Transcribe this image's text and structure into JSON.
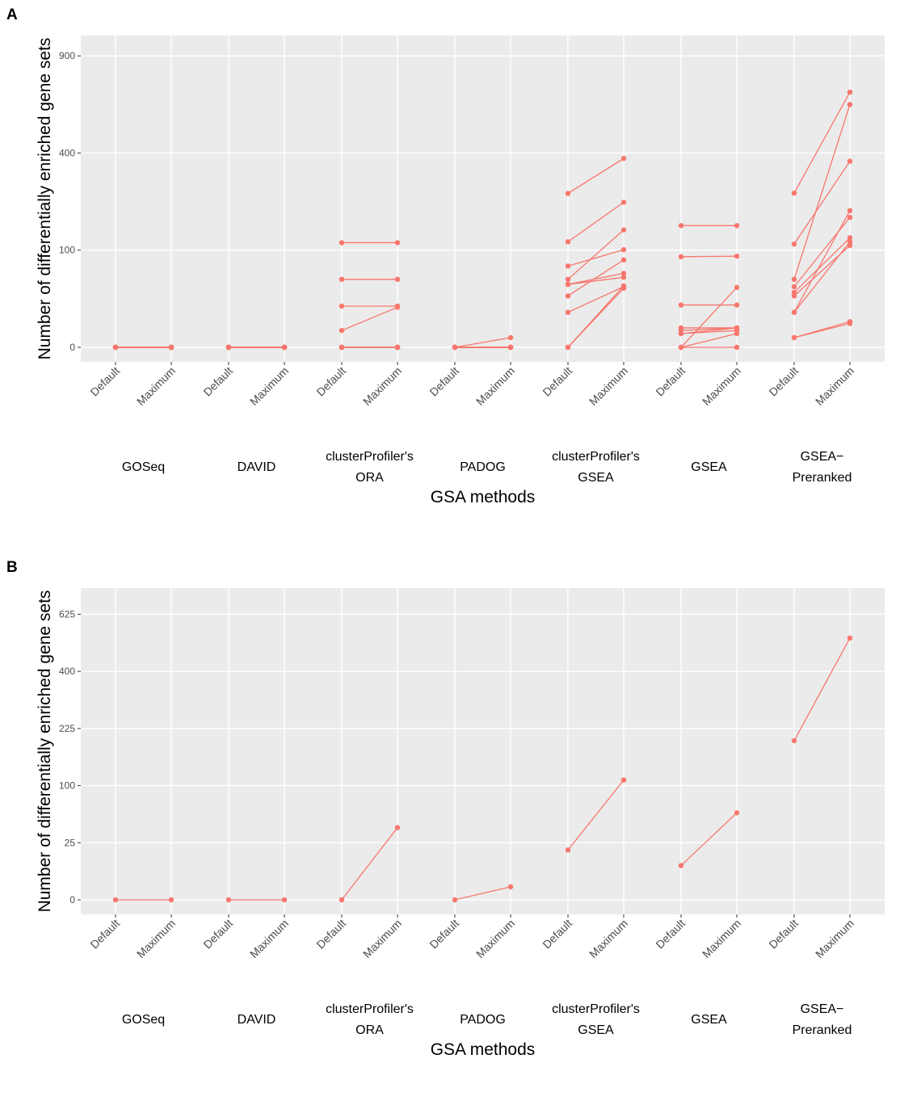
{
  "colors": {
    "series": "#F8766D",
    "panel_bg": "#EBEBEB",
    "grid": "#FFFFFF",
    "tick_text": "#4D4D4D"
  },
  "chart_data": [
    {
      "panel": "A",
      "type": "line",
      "xlabel": "GSA methods",
      "ylabel": "Number of differentially enriched gene sets",
      "y_scale": "sqrt",
      "ylim": [
        0,
        1030
      ],
      "y_ticks": [
        0,
        100,
        400,
        900
      ],
      "y_tick_labels": [
        "0",
        "100",
        "400",
        "900"
      ],
      "x_tick_labels": [
        "Default",
        "Maximum"
      ],
      "groups": [
        "GOSeq",
        "DAVID",
        "clusterProfiler's\nORA",
        "PADOG",
        "clusterProfiler's\nGSEA",
        "GSEA",
        "GSEA−\nPreranked"
      ],
      "grid": true,
      "legend": "none",
      "pairs": [
        {
          "group": "GOSeq",
          "values": [
            [
              0,
              0
            ],
            [
              0,
              0
            ],
            [
              0,
              0
            ],
            [
              0,
              0
            ],
            [
              0,
              0
            ],
            [
              0,
              0
            ],
            [
              0,
              0
            ],
            [
              0,
              0
            ],
            [
              0,
              0
            ],
            [
              0,
              0
            ]
          ]
        },
        {
          "group": "DAVID",
          "values": [
            [
              0,
              0
            ],
            [
              0,
              0
            ],
            [
              0,
              0
            ],
            [
              0,
              0
            ],
            [
              0,
              0
            ],
            [
              0,
              0
            ],
            [
              0,
              0
            ],
            [
              0,
              0
            ],
            [
              0,
              0
            ],
            [
              0,
              0
            ]
          ]
        },
        {
          "group": "clusterProfiler's\nORA",
          "values": [
            [
              116,
              116
            ],
            [
              49,
              49
            ],
            [
              18,
              18
            ],
            [
              3,
              17
            ],
            [
              0,
              0
            ],
            [
              0,
              0
            ],
            [
              0,
              0
            ],
            [
              0,
              0
            ],
            [
              0,
              0
            ],
            [
              0,
              0
            ]
          ]
        },
        {
          "group": "PADOG",
          "values": [
            [
              0,
              1
            ],
            [
              0,
              0
            ],
            [
              0,
              0
            ],
            [
              0,
              0
            ],
            [
              0,
              0
            ],
            [
              0,
              0
            ],
            [
              0,
              0
            ],
            [
              0,
              0
            ],
            [
              0,
              0
            ],
            [
              0,
              0
            ]
          ]
        },
        {
          "group": "clusterProfiler's\nGSEA",
          "values": [
            [
              251,
              378
            ],
            [
              118,
              223
            ],
            [
              70,
              101
            ],
            [
              49,
              146
            ],
            [
              42,
              58
            ],
            [
              42,
              52
            ],
            [
              28,
              81
            ],
            [
              13,
              39
            ],
            [
              0,
              40
            ],
            [
              0,
              37
            ]
          ]
        },
        {
          "group": "GSEA",
          "values": [
            [
              157,
              157
            ],
            [
              87,
              88
            ],
            [
              19,
              19
            ],
            [
              4,
              4
            ],
            [
              3,
              4
            ],
            [
              2,
              4
            ],
            [
              2,
              3
            ],
            [
              0,
              0
            ],
            [
              0,
              2
            ],
            [
              0,
              38
            ]
          ]
        },
        {
          "group": "GSEA−\nPreranked",
          "values": [
            [
              252,
              690
            ],
            [
              113,
              367
            ],
            [
              49,
              625
            ],
            [
              39,
              179
            ],
            [
              32,
              127
            ],
            [
              28,
              110
            ],
            [
              13,
              118
            ],
            [
              13,
              198
            ],
            [
              1,
              6
            ],
            [
              1,
              7
            ]
          ]
        }
      ]
    },
    {
      "panel": "B",
      "type": "line",
      "xlabel": "GSA methods",
      "ylabel": "Number of differentially enriched gene sets",
      "y_scale": "sqrt",
      "ylim": [
        0,
        745
      ],
      "y_ticks": [
        0,
        25,
        100,
        225,
        400,
        625
      ],
      "y_tick_labels": [
        "0",
        "25",
        "100",
        "225",
        "400",
        "625"
      ],
      "x_tick_labels": [
        "Default",
        "Maximum"
      ],
      "groups": [
        "GOSeq",
        "DAVID",
        "clusterProfiler's\nORA",
        "PADOG",
        "clusterProfiler's\nGSEA",
        "GSEA",
        "GSEA−\nPreranked"
      ],
      "grid": true,
      "legend": "none",
      "pairs": [
        {
          "group": "GOSeq",
          "values": [
            [
              0,
              0
            ]
          ]
        },
        {
          "group": "DAVID",
          "values": [
            [
              0,
              0
            ]
          ]
        },
        {
          "group": "clusterProfiler's\nORA",
          "values": [
            [
              0,
              40
            ]
          ]
        },
        {
          "group": "PADOG",
          "values": [
            [
              0,
              1.3
            ]
          ]
        },
        {
          "group": "clusterProfiler's\nGSEA",
          "values": [
            [
              19,
              110
            ]
          ]
        },
        {
          "group": "GSEA",
          "values": [
            [
              9,
              58
            ]
          ]
        },
        {
          "group": "GSEA−\nPreranked",
          "values": [
            [
              194,
              525
            ]
          ]
        }
      ]
    }
  ]
}
